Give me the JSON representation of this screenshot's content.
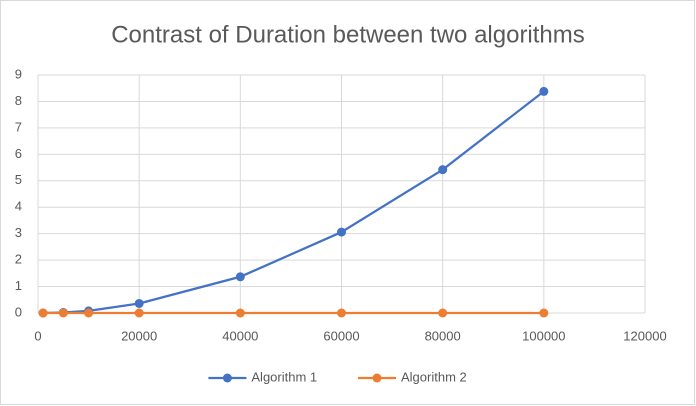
{
  "chart_data": {
    "type": "line",
    "title": "Contrast of Duration between two algorithms",
    "x": [
      1000,
      5000,
      10000,
      20000,
      40000,
      60000,
      80000,
      100000
    ],
    "series": [
      {
        "name": "Algorithm 1",
        "color": "#4472c4",
        "values": [
          0.0,
          0.02,
          0.08,
          0.36,
          1.37,
          3.06,
          5.42,
          8.38
        ]
      },
      {
        "name": "Algorithm 2",
        "color": "#ed7d31",
        "values": [
          0,
          0,
          0,
          0,
          0,
          0,
          0,
          0
        ]
      }
    ],
    "xlim": [
      0,
      120000
    ],
    "xticks": [
      0,
      20000,
      40000,
      60000,
      80000,
      100000,
      120000
    ],
    "ylim": [
      0,
      9
    ],
    "yticks": [
      0,
      1,
      2,
      3,
      4,
      5,
      6,
      7,
      8,
      9
    ],
    "grid": true,
    "legend": "bottom"
  }
}
